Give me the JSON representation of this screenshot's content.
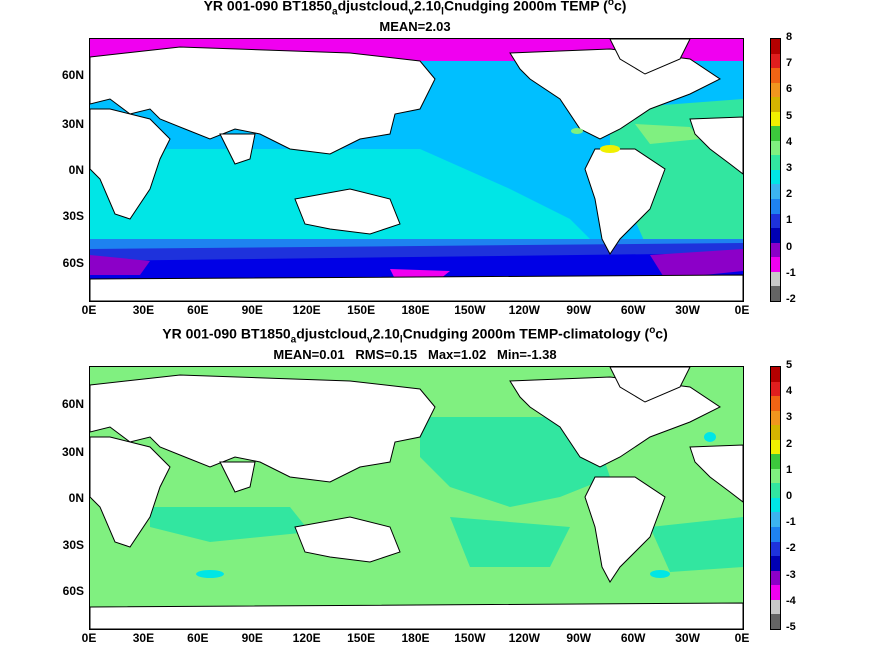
{
  "top": {
    "title_a": "YR 001-090 BT1850",
    "title_s1": "a",
    "title_b": "djustcloud",
    "title_s2": "v",
    "title_c": "2.10",
    "title_s3": "l",
    "title_d": "Cnudging 2000m TEMP (",
    "title_deg": "o",
    "title_e": "c)",
    "stats": "MEAN=2.03",
    "colorbar_labels": [
      "8",
      "7",
      "6",
      "5",
      "4",
      "3",
      "2",
      "1",
      "0",
      "-1",
      "-2"
    ]
  },
  "bottom": {
    "title_a": "YR 001-090 BT1850",
    "title_s1": "a",
    "title_b": "djustcloud",
    "title_s2": "v",
    "title_c": "2.10",
    "title_s3": "l",
    "title_d": "Cnudging 2000m TEMP-climatology (",
    "title_deg": "o",
    "title_e": "c)",
    "stats": "MEAN=0.01   RMS=0.15   Max=1.02   Min=-1.38",
    "colorbar_labels": [
      "5",
      "4",
      "3",
      "2",
      "1",
      "0",
      "-1",
      "-2",
      "-3",
      "-4",
      "-5"
    ]
  },
  "lat_labels": [
    "60N",
    "30N",
    "0N",
    "30S",
    "60S"
  ],
  "lon_labels": [
    "0E",
    "30E",
    "60E",
    "90E",
    "120E",
    "150E",
    "180E",
    "150W",
    "120W",
    "90W",
    "60W",
    "30W",
    "0E"
  ],
  "colors": {
    "colorbar": [
      "#b40000",
      "#e01e1e",
      "#f06414",
      "#f0961e",
      "#d4b400",
      "#f0f000",
      "#3cc83c",
      "#80f080",
      "#32e6a0",
      "#00e6e6",
      "#3cb4f0",
      "#1e82f0",
      "#1e32dc",
      "#0000b4",
      "#8c00c8",
      "#f000f0",
      "#c8c8c8",
      "#646464"
    ],
    "land": "#ffffff",
    "coast": "#000000"
  }
}
